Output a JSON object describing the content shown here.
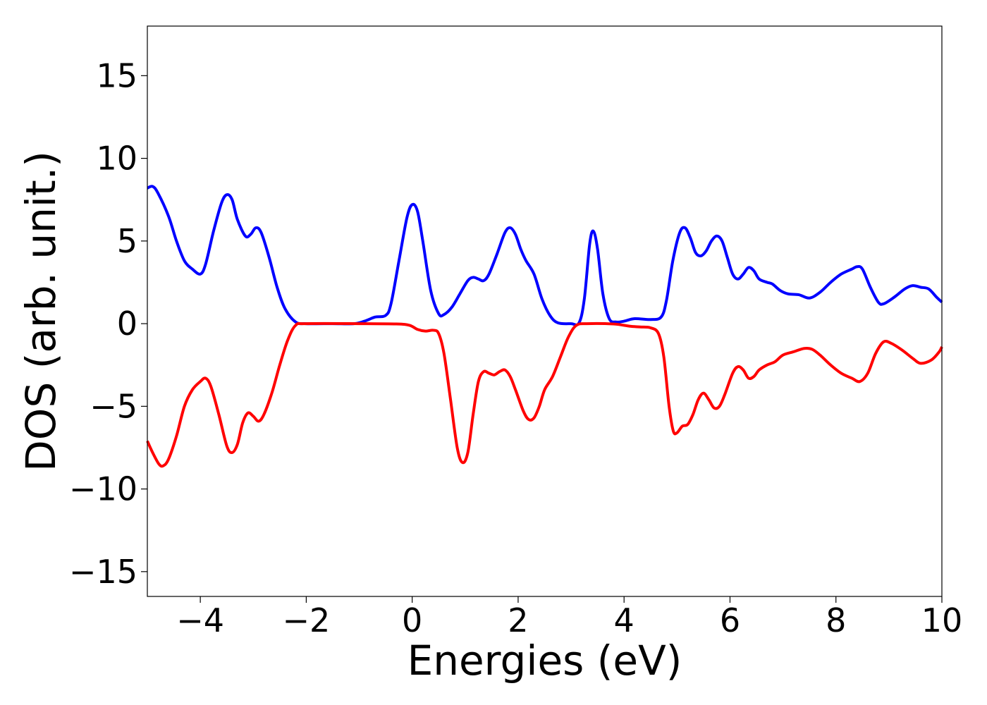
{
  "chart_data": {
    "type": "line",
    "title": "",
    "xlabel": "Energies (eV)",
    "ylabel": "DOS (arb. unit.)",
    "xlim": [
      -5,
      10
    ],
    "ylim": [
      -16.5,
      18
    ],
    "grid": false,
    "legend": "none",
    "x_ticks": [
      -4,
      -2,
      0,
      2,
      4,
      6,
      8,
      10
    ],
    "x_tick_labels": [
      "−4",
      "−2",
      "0",
      "2",
      "4",
      "6",
      "8",
      "10"
    ],
    "y_ticks": [
      -15,
      -10,
      -5,
      0,
      5,
      10,
      15
    ],
    "y_tick_labels": [
      "−15",
      "−10",
      "−5",
      "0",
      "5",
      "10",
      "15"
    ],
    "series": [
      {
        "color": "#0000ff",
        "points": [
          [
            -5.0,
            8.2
          ],
          [
            -4.9,
            8.3
          ],
          [
            -4.8,
            7.9
          ],
          [
            -4.6,
            6.5
          ],
          [
            -4.45,
            5.0
          ],
          [
            -4.3,
            3.8
          ],
          [
            -4.15,
            3.3
          ],
          [
            -4.0,
            3.0
          ],
          [
            -3.9,
            3.6
          ],
          [
            -3.75,
            5.6
          ],
          [
            -3.6,
            7.3
          ],
          [
            -3.5,
            7.8
          ],
          [
            -3.4,
            7.5
          ],
          [
            -3.3,
            6.3
          ],
          [
            -3.15,
            5.3
          ],
          [
            -3.05,
            5.4
          ],
          [
            -2.95,
            5.8
          ],
          [
            -2.85,
            5.5
          ],
          [
            -2.7,
            4.0
          ],
          [
            -2.55,
            2.2
          ],
          [
            -2.4,
            0.9
          ],
          [
            -2.2,
            0.1
          ],
          [
            -2.0,
            0.0
          ],
          [
            -1.5,
            0.0
          ],
          [
            -1.1,
            0.0
          ],
          [
            -0.9,
            0.15
          ],
          [
            -0.7,
            0.4
          ],
          [
            -0.5,
            0.5
          ],
          [
            -0.4,
            1.2
          ],
          [
            -0.25,
            3.8
          ],
          [
            -0.1,
            6.4
          ],
          [
            0.0,
            7.2
          ],
          [
            0.1,
            6.8
          ],
          [
            0.2,
            5.0
          ],
          [
            0.35,
            2.0
          ],
          [
            0.5,
            0.6
          ],
          [
            0.6,
            0.55
          ],
          [
            0.75,
            1.0
          ],
          [
            0.9,
            1.8
          ],
          [
            1.05,
            2.6
          ],
          [
            1.15,
            2.8
          ],
          [
            1.25,
            2.7
          ],
          [
            1.35,
            2.6
          ],
          [
            1.45,
            3.0
          ],
          [
            1.6,
            4.2
          ],
          [
            1.75,
            5.5
          ],
          [
            1.85,
            5.8
          ],
          [
            1.95,
            5.4
          ],
          [
            2.05,
            4.5
          ],
          [
            2.15,
            3.8
          ],
          [
            2.3,
            3.0
          ],
          [
            2.45,
            1.5
          ],
          [
            2.6,
            0.5
          ],
          [
            2.75,
            0.05
          ],
          [
            3.0,
            0.0
          ],
          [
            3.15,
            0.05
          ],
          [
            3.25,
            1.5
          ],
          [
            3.35,
            4.8
          ],
          [
            3.42,
            5.6
          ],
          [
            3.5,
            4.5
          ],
          [
            3.6,
            1.8
          ],
          [
            3.72,
            0.3
          ],
          [
            3.85,
            0.1
          ],
          [
            4.0,
            0.15
          ],
          [
            4.2,
            0.3
          ],
          [
            4.5,
            0.25
          ],
          [
            4.7,
            0.4
          ],
          [
            4.8,
            1.4
          ],
          [
            4.92,
            3.8
          ],
          [
            5.05,
            5.5
          ],
          [
            5.15,
            5.8
          ],
          [
            5.25,
            5.2
          ],
          [
            5.35,
            4.3
          ],
          [
            5.45,
            4.1
          ],
          [
            5.55,
            4.4
          ],
          [
            5.65,
            5.0
          ],
          [
            5.75,
            5.3
          ],
          [
            5.85,
            5.0
          ],
          [
            5.95,
            4.0
          ],
          [
            6.05,
            3.0
          ],
          [
            6.15,
            2.7
          ],
          [
            6.25,
            3.0
          ],
          [
            6.35,
            3.4
          ],
          [
            6.45,
            3.2
          ],
          [
            6.55,
            2.7
          ],
          [
            6.7,
            2.5
          ],
          [
            6.8,
            2.4
          ],
          [
            6.95,
            2.0
          ],
          [
            7.1,
            1.8
          ],
          [
            7.3,
            1.75
          ],
          [
            7.5,
            1.55
          ],
          [
            7.7,
            1.9
          ],
          [
            7.9,
            2.5
          ],
          [
            8.1,
            3.0
          ],
          [
            8.3,
            3.3
          ],
          [
            8.4,
            3.45
          ],
          [
            8.5,
            3.3
          ],
          [
            8.65,
            2.2
          ],
          [
            8.8,
            1.3
          ],
          [
            8.9,
            1.2
          ],
          [
            9.1,
            1.6
          ],
          [
            9.3,
            2.1
          ],
          [
            9.45,
            2.3
          ],
          [
            9.6,
            2.2
          ],
          [
            9.75,
            2.1
          ],
          [
            9.9,
            1.6
          ],
          [
            10.0,
            1.3
          ]
        ]
      },
      {
        "color": "#ff0000",
        "points": [
          [
            -5.0,
            -7.1
          ],
          [
            -4.9,
            -7.8
          ],
          [
            -4.78,
            -8.5
          ],
          [
            -4.7,
            -8.6
          ],
          [
            -4.6,
            -8.2
          ],
          [
            -4.45,
            -6.8
          ],
          [
            -4.3,
            -5.0
          ],
          [
            -4.15,
            -4.0
          ],
          [
            -4.0,
            -3.5
          ],
          [
            -3.9,
            -3.3
          ],
          [
            -3.8,
            -3.8
          ],
          [
            -3.65,
            -5.5
          ],
          [
            -3.5,
            -7.4
          ],
          [
            -3.4,
            -7.8
          ],
          [
            -3.3,
            -7.3
          ],
          [
            -3.2,
            -6.0
          ],
          [
            -3.1,
            -5.4
          ],
          [
            -3.0,
            -5.6
          ],
          [
            -2.9,
            -5.9
          ],
          [
            -2.8,
            -5.5
          ],
          [
            -2.65,
            -4.2
          ],
          [
            -2.5,
            -2.5
          ],
          [
            -2.35,
            -1.0
          ],
          [
            -2.2,
            -0.1
          ],
          [
            -2.0,
            0.0
          ],
          [
            -1.0,
            0.0
          ],
          [
            -0.3,
            -0.02
          ],
          [
            -0.05,
            -0.1
          ],
          [
            0.1,
            -0.35
          ],
          [
            0.25,
            -0.45
          ],
          [
            0.4,
            -0.4
          ],
          [
            0.5,
            -0.6
          ],
          [
            0.6,
            -1.8
          ],
          [
            0.72,
            -4.5
          ],
          [
            0.85,
            -7.5
          ],
          [
            0.95,
            -8.4
          ],
          [
            1.05,
            -7.8
          ],
          [
            1.15,
            -5.5
          ],
          [
            1.25,
            -3.5
          ],
          [
            1.35,
            -2.9
          ],
          [
            1.45,
            -3.0
          ],
          [
            1.55,
            -3.1
          ],
          [
            1.65,
            -2.9
          ],
          [
            1.75,
            -2.8
          ],
          [
            1.85,
            -3.2
          ],
          [
            1.95,
            -4.0
          ],
          [
            2.1,
            -5.3
          ],
          [
            2.2,
            -5.8
          ],
          [
            2.3,
            -5.7
          ],
          [
            2.4,
            -5.0
          ],
          [
            2.5,
            -4.0
          ],
          [
            2.65,
            -3.2
          ],
          [
            2.8,
            -2.0
          ],
          [
            2.95,
            -0.8
          ],
          [
            3.1,
            -0.1
          ],
          [
            3.3,
            0.0
          ],
          [
            3.8,
            -0.02
          ],
          [
            4.1,
            -0.15
          ],
          [
            4.3,
            -0.2
          ],
          [
            4.5,
            -0.25
          ],
          [
            4.65,
            -0.6
          ],
          [
            4.75,
            -2.0
          ],
          [
            4.85,
            -5.0
          ],
          [
            4.93,
            -6.5
          ],
          [
            5.0,
            -6.6
          ],
          [
            5.1,
            -6.2
          ],
          [
            5.2,
            -6.1
          ],
          [
            5.3,
            -5.5
          ],
          [
            5.4,
            -4.6
          ],
          [
            5.5,
            -4.2
          ],
          [
            5.6,
            -4.6
          ],
          [
            5.7,
            -5.1
          ],
          [
            5.8,
            -5.0
          ],
          [
            5.9,
            -4.3
          ],
          [
            6.05,
            -3.0
          ],
          [
            6.15,
            -2.6
          ],
          [
            6.25,
            -2.8
          ],
          [
            6.35,
            -3.3
          ],
          [
            6.45,
            -3.2
          ],
          [
            6.55,
            -2.8
          ],
          [
            6.7,
            -2.5
          ],
          [
            6.85,
            -2.3
          ],
          [
            7.0,
            -1.9
          ],
          [
            7.2,
            -1.7
          ],
          [
            7.4,
            -1.5
          ],
          [
            7.55,
            -1.55
          ],
          [
            7.7,
            -1.9
          ],
          [
            7.9,
            -2.5
          ],
          [
            8.1,
            -3.0
          ],
          [
            8.3,
            -3.3
          ],
          [
            8.45,
            -3.5
          ],
          [
            8.6,
            -3.0
          ],
          [
            8.75,
            -1.8
          ],
          [
            8.9,
            -1.1
          ],
          [
            9.05,
            -1.2
          ],
          [
            9.25,
            -1.6
          ],
          [
            9.45,
            -2.1
          ],
          [
            9.6,
            -2.4
          ],
          [
            9.8,
            -2.2
          ],
          [
            9.95,
            -1.7
          ],
          [
            10.0,
            -1.4
          ]
        ]
      }
    ]
  }
}
